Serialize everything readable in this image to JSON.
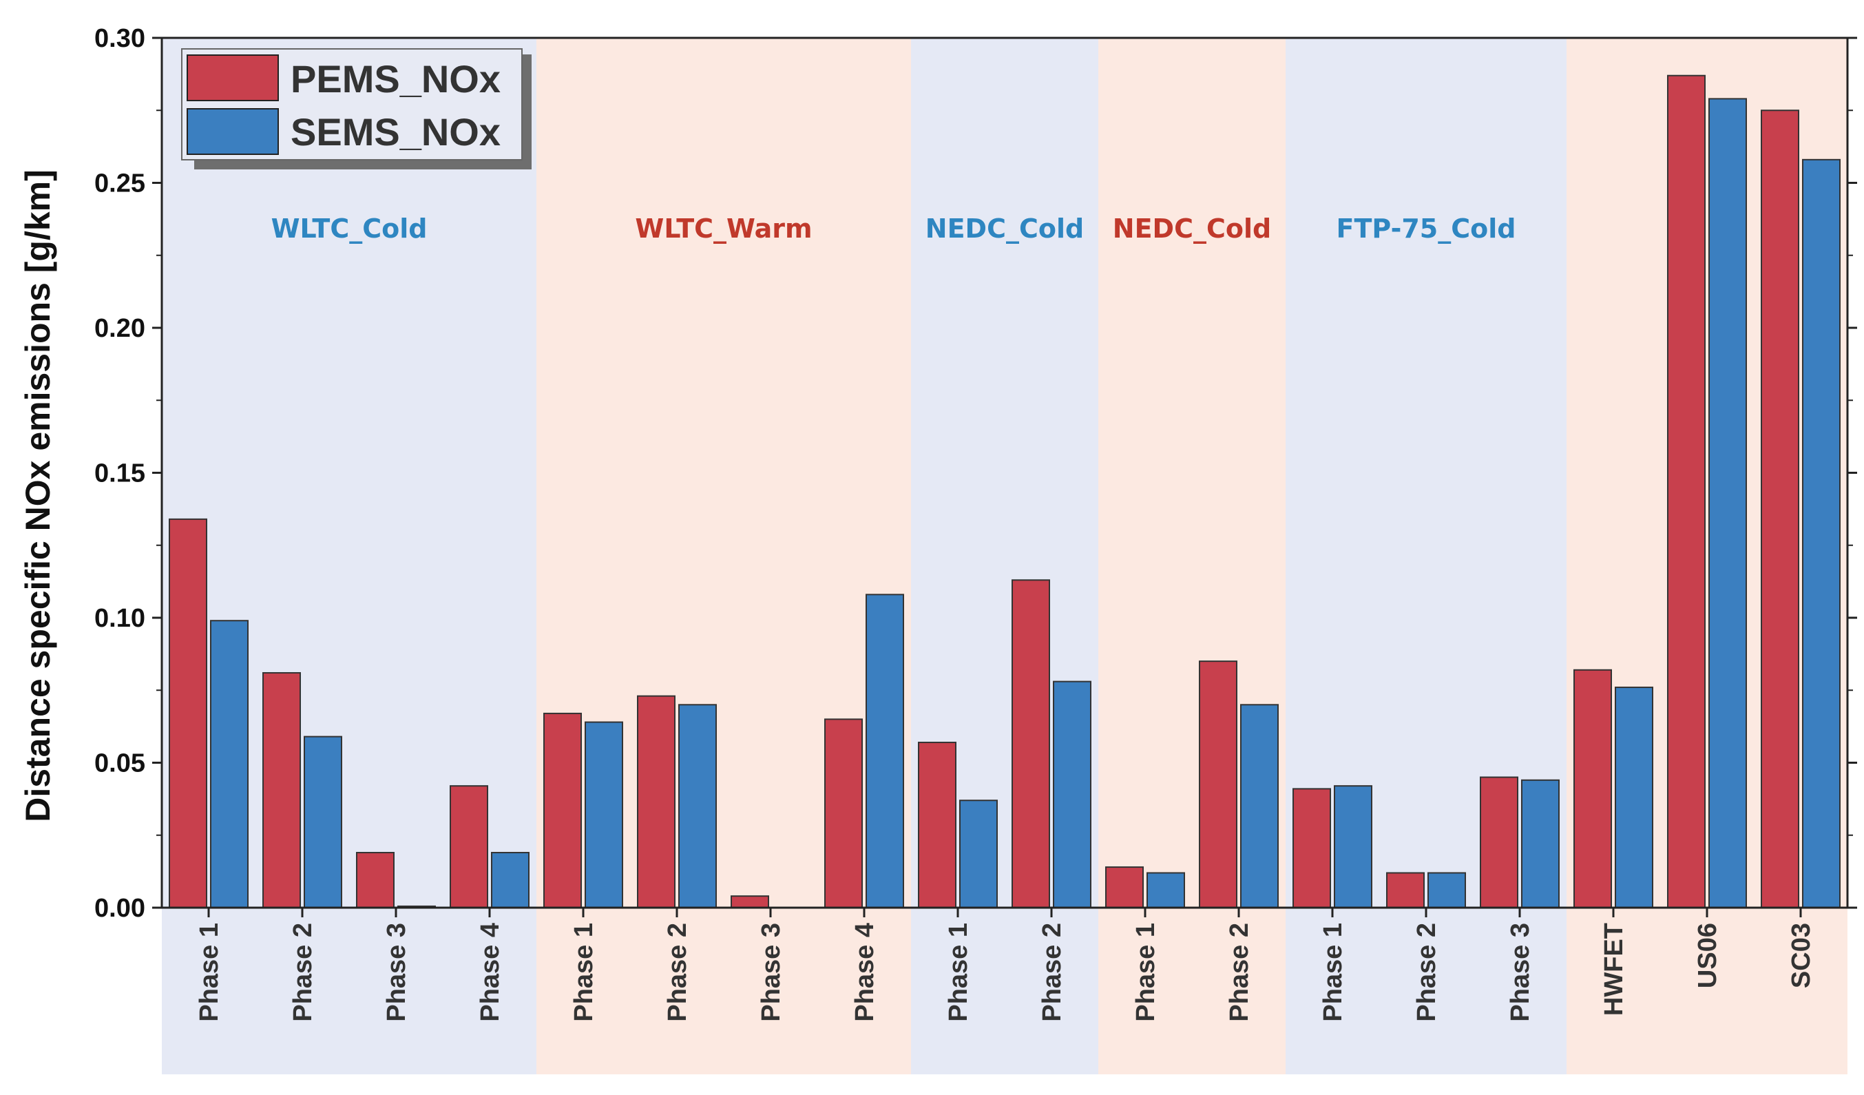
{
  "chart_data": {
    "type": "bar",
    "title": "",
    "xlabel": "",
    "ylabel": "Distance specific NOx emissions [g/km]",
    "ylim": [
      0,
      0.3
    ],
    "yticks": [
      "0.00",
      "0.05",
      "0.10",
      "0.15",
      "0.20",
      "0.25",
      "0.30"
    ],
    "legend_position": "top-left",
    "categories": [
      "Phase 1",
      "Phase 2",
      "Phase 3",
      "Phase 4",
      "Phase 1",
      "Phase 2",
      "Phase 3",
      "Phase 4",
      "Phase 1",
      "Phase 2",
      "Phase 1",
      "Phase 2",
      "Phase 1",
      "Phase 2",
      "Phase 3",
      "HWFET",
      "US06",
      "SC03"
    ],
    "series": [
      {
        "name": "PEMS_NOx",
        "color": "#c8404d",
        "values": [
          0.134,
          0.081,
          0.019,
          0.042,
          0.067,
          0.073,
          0.004,
          0.065,
          0.057,
          0.113,
          0.014,
          0.085,
          0.041,
          0.012,
          0.045,
          0.082,
          0.287,
          0.275
        ]
      },
      {
        "name": "SEMS_NOx",
        "color": "#3b7fc0",
        "values": [
          0.099,
          0.059,
          0.0005,
          0.019,
          0.064,
          0.07,
          0.0,
          0.108,
          0.037,
          0.078,
          0.012,
          0.07,
          0.042,
          0.012,
          0.044,
          0.076,
          0.279,
          0.258
        ]
      }
    ],
    "groups": [
      {
        "label": "WLTC_Cold",
        "start": 0,
        "end": 3,
        "band": "#e5e9f5",
        "label_color": "#2e86c1"
      },
      {
        "label": "WLTC_Warm",
        "start": 4,
        "end": 7,
        "band": "#fce9e1",
        "label_color": "#c0392b"
      },
      {
        "label": "NEDC_Cold",
        "start": 8,
        "end": 9,
        "band": "#e5e9f5",
        "label_color": "#2e86c1"
      },
      {
        "label": "NEDC_Cold",
        "start": 10,
        "end": 11,
        "band": "#fce9e1",
        "label_color": "#c0392b"
      },
      {
        "label": "FTP-75_Cold",
        "start": 12,
        "end": 14,
        "band": "#e5e9f5",
        "label_color": "#2e86c1"
      },
      {
        "label": "",
        "start": 15,
        "end": 17,
        "band": "#fce9e1",
        "label_color": "#c0392b"
      }
    ]
  }
}
